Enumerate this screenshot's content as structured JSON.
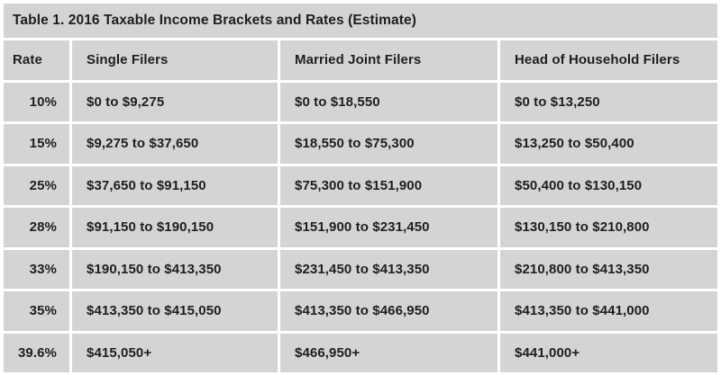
{
  "title": "Table 1. 2016 Taxable Income Brackets and Rates (Estimate)",
  "chart_data": {
    "type": "table",
    "title": "Table 1. 2016 Taxable Income Brackets and Rates (Estimate)",
    "columns": [
      "Rate",
      "Single Filers",
      "Married Joint Filers",
      "Head of Household Filers"
    ],
    "rows": [
      [
        "10%",
        "$0 to $9,275",
        "$0 to $18,550",
        "$0 to $13,250"
      ],
      [
        "15%",
        "$9,275 to $37,650",
        "$18,550 to $75,300",
        "$13,250 to $50,400"
      ],
      [
        "25%",
        "$37,650 to $91,150",
        "$75,300 to $151,900",
        "$50,400 to $130,150"
      ],
      [
        "28%",
        "$91,150 to $190,150",
        "$151,900 to $231,450",
        "$130,150 to $210,800"
      ],
      [
        "33%",
        "$190,150 to $413,350",
        "$231,450 to $413,350",
        "$210,800 to $413,350"
      ],
      [
        "35%",
        "$413,350 to $415,050",
        "$413,350 to $466,950",
        "$413,350 to $441,000"
      ],
      [
        "39.6%",
        "$415,050+",
        "$466,950+",
        "$441,000+"
      ]
    ],
    "rates_percent": [
      10,
      15,
      25,
      28,
      33,
      35,
      39.6
    ],
    "bracket_bounds_usd": {
      "single": [
        [
          0,
          9275
        ],
        [
          9275,
          37650
        ],
        [
          37650,
          91150
        ],
        [
          91150,
          190150
        ],
        [
          190150,
          413350
        ],
        [
          413350,
          415050
        ],
        [
          415050,
          null
        ]
      ],
      "married_joint": [
        [
          0,
          18550
        ],
        [
          18550,
          75300
        ],
        [
          75300,
          151900
        ],
        [
          151900,
          231450
        ],
        [
          231450,
          413350
        ],
        [
          413350,
          466950
        ],
        [
          466950,
          null
        ]
      ],
      "head_of_household": [
        [
          0,
          13250
        ],
        [
          13250,
          50400
        ],
        [
          50400,
          130150
        ],
        [
          130150,
          210800
        ],
        [
          210800,
          413350
        ],
        [
          413350,
          441000
        ],
        [
          441000,
          null
        ]
      ]
    },
    "layout": {
      "header_row": true,
      "gridlines": "white gaps between gray cells",
      "rate_values_alignment": "right",
      "other_columns_alignment": "left"
    }
  },
  "colors": {
    "page_bg": "#ffffff",
    "cell_bg": "#d4d4d4",
    "grid_line": "#ffffff",
    "text": "#1e1e1e"
  }
}
